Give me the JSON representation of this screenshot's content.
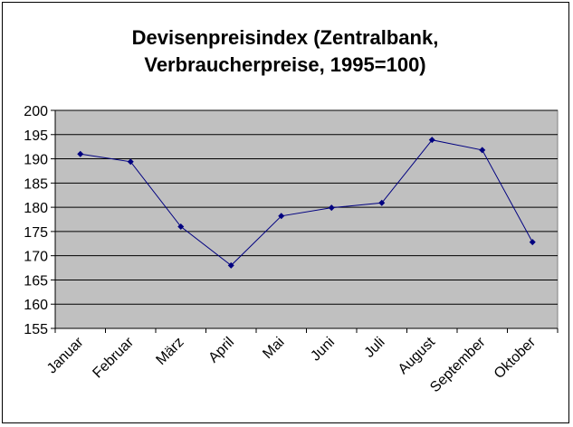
{
  "chart_data": {
    "type": "line",
    "title_lines": [
      "Devisenpreisindex (Zentralbank,",
      "Verbraucherpreise, 1995=100)"
    ],
    "xlabel": "",
    "ylabel": "",
    "categories": [
      "Januar",
      "Februar",
      "März",
      "April",
      "Mai",
      "Juni",
      "Juli",
      "August",
      "September",
      "Oktober"
    ],
    "series": [
      {
        "values": [
          191,
          189.4,
          176,
          168,
          178.2,
          179.9,
          180.9,
          193.9,
          191.8,
          172.8
        ]
      }
    ],
    "ylim": [
      155,
      200
    ],
    "yticks": [
      155,
      160,
      165,
      170,
      175,
      180,
      185,
      190,
      195,
      200
    ],
    "grid": true,
    "legend": "none",
    "colors": {
      "plot_background": "#c0c0c0",
      "line": "#000080",
      "gridline": "#000000"
    }
  }
}
